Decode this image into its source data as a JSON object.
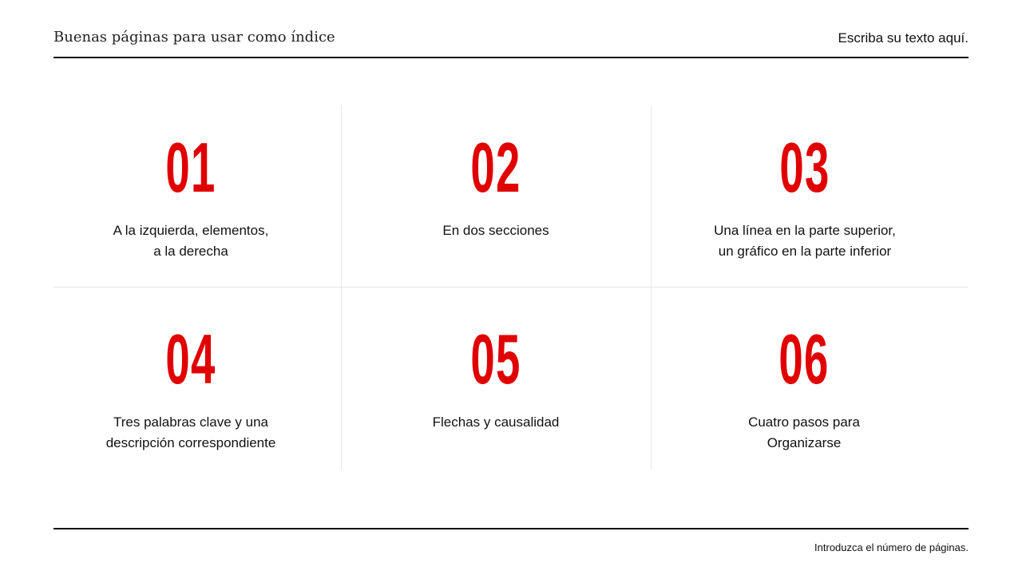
{
  "header": {
    "title": "Buenas páginas para usar como índice",
    "subtitle": "Escriba su texto aquí."
  },
  "items": [
    {
      "number": "01",
      "line1": "A la izquierda, elementos,",
      "line2": "a la derecha"
    },
    {
      "number": "02",
      "line1": "En dos secciones",
      "line2": ""
    },
    {
      "number": "03",
      "line1": "Una línea en la parte superior,",
      "line2": "un gráfico en la parte inferior"
    },
    {
      "number": "04",
      "line1": "Tres palabras clave y una",
      "line2": "descripción correspondiente"
    },
    {
      "number": "05",
      "line1": "Flechas y causalidad",
      "line2": ""
    },
    {
      "number": "06",
      "line1": "Cuatro pasos para",
      "line2": "Organizarse"
    }
  ],
  "footer": {
    "page_note": "Introduzca el número de páginas."
  },
  "colors": {
    "accent": "#e00000"
  }
}
